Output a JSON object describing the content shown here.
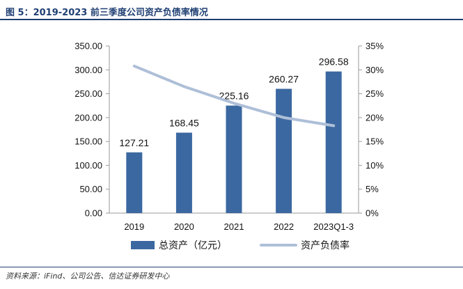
{
  "figure": {
    "title": "图 5：2019-2023 前三季度公司资产负债率情况",
    "source": "资料来源：iFind、公司公告、信达证券研发中心"
  },
  "chart_data": {
    "type": "bar+line",
    "categories": [
      "2019",
      "2020",
      "2021",
      "2022",
      "2023Q1-3"
    ],
    "series": [
      {
        "name": "总资产（亿元）",
        "type": "bar",
        "axis": "left",
        "color": "#3b68a0",
        "values": [
          127.21,
          168.45,
          225.16,
          260.27,
          296.58
        ],
        "labels": [
          "127.21",
          "168.45",
          "225.16",
          "260.27",
          "296.58"
        ]
      },
      {
        "name": "资产负债率",
        "type": "line",
        "axis": "right",
        "color": "#aebfd8",
        "values": [
          30.8,
          26.5,
          23.0,
          20.0,
          18.3
        ]
      }
    ],
    "y_left": {
      "min": 0,
      "max": 350,
      "ticks": [
        "0.00",
        "50.00",
        "100.00",
        "150.00",
        "200.00",
        "250.00",
        "300.00",
        "350.00"
      ]
    },
    "y_right": {
      "min": 0,
      "max": 35,
      "ticks": [
        "0%",
        "5%",
        "10%",
        "15%",
        "20%",
        "25%",
        "30%",
        "35%"
      ]
    },
    "grid": false,
    "legend": "bottom"
  }
}
